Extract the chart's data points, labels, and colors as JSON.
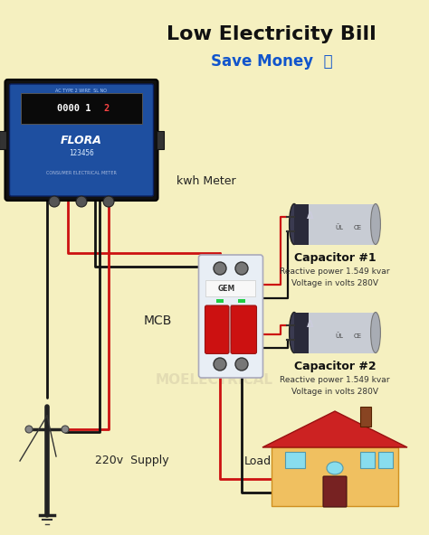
{
  "bg_color": "#f5f0c0",
  "title": "Low Electricity Bill",
  "subtitle": "Save Money",
  "title_color": "#111111",
  "subtitle_color": "#1155cc",
  "labels": {
    "kwh_meter": "kwh Meter",
    "mcb": "MCB",
    "supply": "220v  Supply",
    "load": "Load",
    "cap1_title": "Capacitor #1",
    "cap1_line1": "Reactive power 1.549 kvar",
    "cap1_line2": "Voltage in volts 280V",
    "cap2_title": "Capacitor #2",
    "cap2_line1": "Reactive power 1.549 kvar",
    "cap2_line2": "Voltage in volts 280V"
  },
  "wire_red": "#cc1111",
  "wire_black": "#111111",
  "meter_blue": "#1e4fa0",
  "meter_dark": "#0d1a40"
}
